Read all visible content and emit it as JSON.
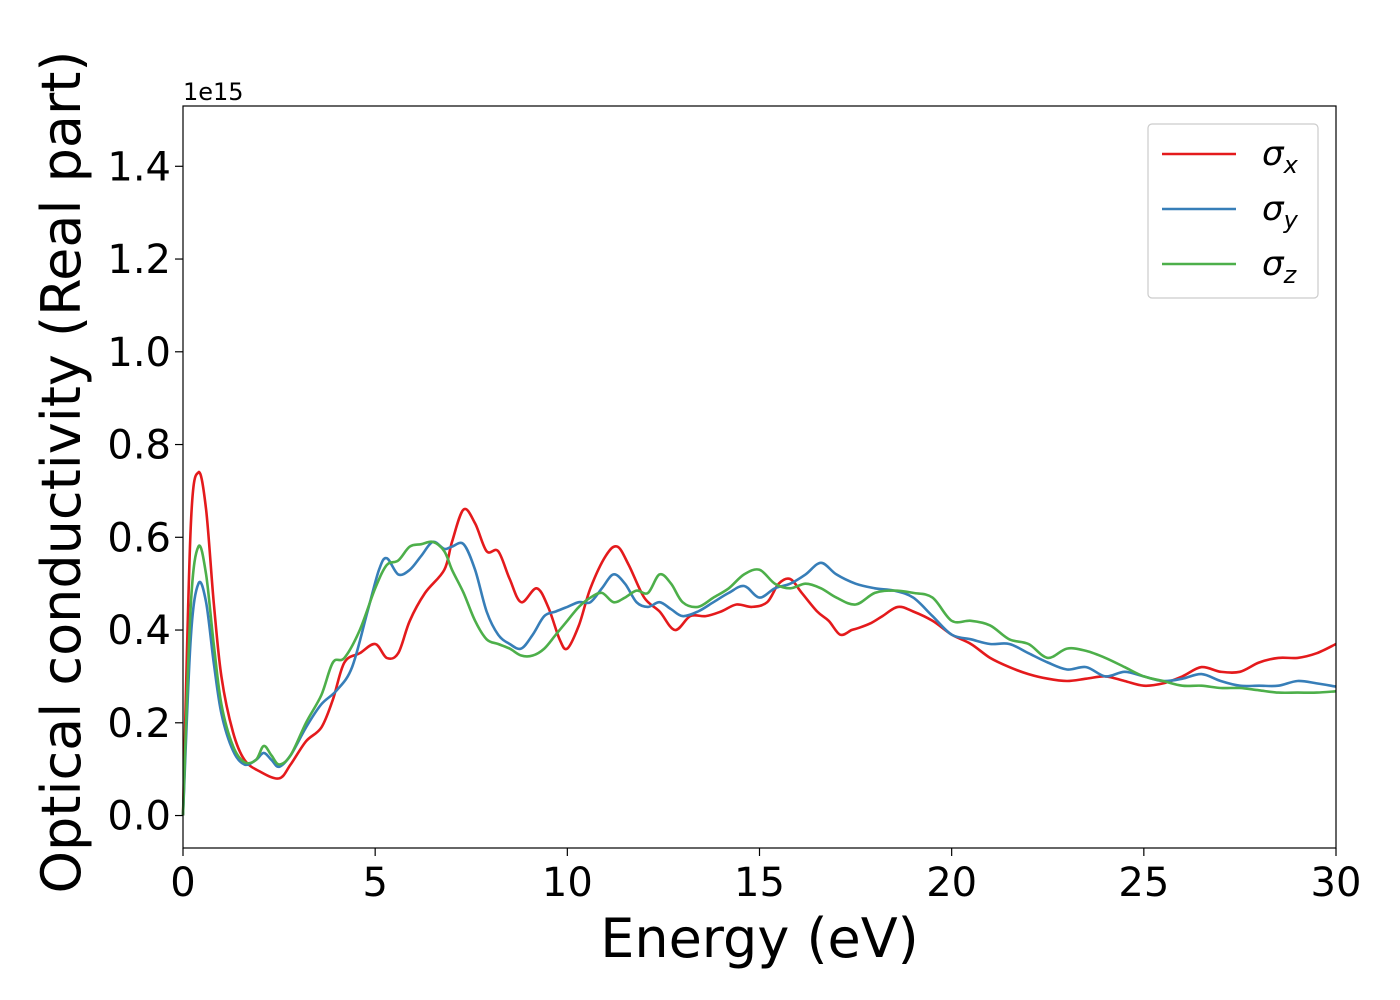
{
  "chart_data": {
    "type": "line",
    "xlabel": "Energy (eV)",
    "ylabel": "Optical conductivity (Real part)",
    "y_offset_label": "1e15",
    "y_scale_factor": 1000000000000000.0,
    "xlim": [
      0,
      30
    ],
    "ylim": [
      -0.07,
      1.53
    ],
    "x_ticks": [
      0,
      5,
      10,
      15,
      20,
      25,
      30
    ],
    "x_tick_labels": [
      "0",
      "5",
      "10",
      "15",
      "20",
      "25",
      "30"
    ],
    "y_ticks": [
      0.0,
      0.2,
      0.4,
      0.6,
      0.8,
      1.0,
      1.2,
      1.4
    ],
    "y_tick_labels": [
      "0.0",
      "0.2",
      "0.4",
      "0.6",
      "0.8",
      "1.0",
      "1.2",
      "1.4"
    ],
    "grid": false,
    "legend_position": "top-right",
    "series": [
      {
        "name": "σx",
        "legend_main": "σ",
        "legend_sub": "x",
        "color": "#e41a1c",
        "x": [
          0,
          0.2,
          0.4,
          0.6,
          0.8,
          1.0,
          1.3,
          1.6,
          2.0,
          2.5,
          2.8,
          3.2,
          3.6,
          3.9,
          4.2,
          4.6,
          5.0,
          5.3,
          5.6,
          5.9,
          6.3,
          6.8,
          7.0,
          7.3,
          7.6,
          7.9,
          8.2,
          8.5,
          8.8,
          9.2,
          9.5,
          9.8,
          10.0,
          10.3,
          10.6,
          11.0,
          11.3,
          11.6,
          12.0,
          12.4,
          12.8,
          13.2,
          13.6,
          14.0,
          14.4,
          14.8,
          15.2,
          15.5,
          15.8,
          16.1,
          16.5,
          16.8,
          17.1,
          17.4,
          17.6,
          17.9,
          18.2,
          18.6,
          19.0,
          19.5,
          20.0,
          20.5,
          21.0,
          21.5,
          22.0,
          22.5,
          23.0,
          23.5,
          24.0,
          24.5,
          25.0,
          25.5,
          26.0,
          26.5,
          27.0,
          27.5,
          28.0,
          28.5,
          29.0,
          29.5,
          30.0
        ],
        "y": [
          0.0,
          0.62,
          0.74,
          0.66,
          0.46,
          0.3,
          0.18,
          0.12,
          0.095,
          0.08,
          0.11,
          0.16,
          0.19,
          0.25,
          0.33,
          0.35,
          0.37,
          0.34,
          0.35,
          0.42,
          0.48,
          0.53,
          0.59,
          0.66,
          0.63,
          0.57,
          0.57,
          0.51,
          0.46,
          0.49,
          0.45,
          0.38,
          0.36,
          0.41,
          0.49,
          0.56,
          0.58,
          0.54,
          0.47,
          0.44,
          0.4,
          0.43,
          0.43,
          0.44,
          0.455,
          0.45,
          0.46,
          0.5,
          0.51,
          0.48,
          0.44,
          0.42,
          0.39,
          0.4,
          0.405,
          0.415,
          0.43,
          0.45,
          0.44,
          0.42,
          0.39,
          0.37,
          0.34,
          0.32,
          0.305,
          0.295,
          0.29,
          0.295,
          0.3,
          0.29,
          0.28,
          0.285,
          0.3,
          0.32,
          0.31,
          0.31,
          0.33,
          0.34,
          0.34,
          0.35,
          0.37
        ]
      },
      {
        "name": "σy",
        "legend_main": "σ",
        "legend_sub": "y",
        "color": "#377eb8",
        "x": [
          0,
          0.2,
          0.4,
          0.6,
          0.8,
          1.0,
          1.3,
          1.6,
          1.9,
          2.1,
          2.3,
          2.5,
          2.8,
          3.2,
          3.6,
          4.0,
          4.4,
          4.8,
          5.1,
          5.3,
          5.6,
          5.9,
          6.2,
          6.5,
          6.8,
          7.0,
          7.3,
          7.6,
          7.9,
          8.2,
          8.5,
          8.8,
          9.1,
          9.4,
          9.7,
          10.0,
          10.3,
          10.6,
          10.9,
          11.2,
          11.5,
          11.8,
          12.1,
          12.4,
          12.7,
          13.0,
          13.4,
          13.8,
          14.2,
          14.6,
          15.0,
          15.4,
          15.8,
          16.2,
          16.6,
          17.0,
          17.5,
          18.0,
          18.5,
          19.0,
          19.5,
          20.0,
          20.5,
          21.0,
          21.5,
          22.0,
          22.5,
          23.0,
          23.5,
          24.0,
          24.5,
          25.0,
          25.5,
          26.0,
          26.5,
          27.0,
          27.5,
          28.0,
          28.5,
          29.0,
          29.5,
          30.0
        ],
        "y": [
          0.0,
          0.38,
          0.5,
          0.46,
          0.33,
          0.22,
          0.14,
          0.11,
          0.12,
          0.135,
          0.12,
          0.105,
          0.13,
          0.19,
          0.24,
          0.27,
          0.32,
          0.44,
          0.53,
          0.555,
          0.52,
          0.53,
          0.56,
          0.59,
          0.575,
          0.58,
          0.585,
          0.53,
          0.44,
          0.39,
          0.37,
          0.36,
          0.39,
          0.43,
          0.44,
          0.45,
          0.46,
          0.46,
          0.49,
          0.52,
          0.5,
          0.46,
          0.45,
          0.46,
          0.445,
          0.43,
          0.44,
          0.46,
          0.48,
          0.495,
          0.47,
          0.49,
          0.5,
          0.52,
          0.545,
          0.52,
          0.5,
          0.49,
          0.485,
          0.47,
          0.43,
          0.39,
          0.38,
          0.37,
          0.37,
          0.35,
          0.33,
          0.315,
          0.32,
          0.3,
          0.31,
          0.3,
          0.29,
          0.295,
          0.305,
          0.29,
          0.28,
          0.28,
          0.28,
          0.29,
          0.285,
          0.278
        ]
      },
      {
        "name": "σz",
        "legend_main": "σ",
        "legend_sub": "z",
        "color": "#4daf4a",
        "x": [
          0,
          0.2,
          0.4,
          0.6,
          0.8,
          1.0,
          1.3,
          1.6,
          1.9,
          2.1,
          2.3,
          2.5,
          2.8,
          3.2,
          3.6,
          3.9,
          4.2,
          4.6,
          5.0,
          5.3,
          5.6,
          5.9,
          6.2,
          6.5,
          6.8,
          7.0,
          7.3,
          7.6,
          7.9,
          8.2,
          8.5,
          8.8,
          9.1,
          9.4,
          9.7,
          10.0,
          10.3,
          10.6,
          10.9,
          11.2,
          11.5,
          11.8,
          12.1,
          12.4,
          12.7,
          13.0,
          13.4,
          13.8,
          14.2,
          14.6,
          15.0,
          15.4,
          15.8,
          16.2,
          16.6,
          17.0,
          17.5,
          18.0,
          18.5,
          19.0,
          19.5,
          20.0,
          20.5,
          21.0,
          21.5,
          22.0,
          22.5,
          23.0,
          23.5,
          24.0,
          24.5,
          25.0,
          25.5,
          26.0,
          26.5,
          27.0,
          27.5,
          28.0,
          28.5,
          29.0,
          29.5,
          30.0
        ],
        "y": [
          0.0,
          0.45,
          0.58,
          0.52,
          0.37,
          0.24,
          0.15,
          0.115,
          0.12,
          0.15,
          0.13,
          0.11,
          0.13,
          0.2,
          0.26,
          0.33,
          0.34,
          0.4,
          0.49,
          0.54,
          0.55,
          0.58,
          0.585,
          0.59,
          0.57,
          0.53,
          0.48,
          0.42,
          0.38,
          0.37,
          0.36,
          0.345,
          0.345,
          0.36,
          0.39,
          0.42,
          0.45,
          0.47,
          0.48,
          0.46,
          0.47,
          0.485,
          0.48,
          0.52,
          0.5,
          0.46,
          0.45,
          0.47,
          0.49,
          0.52,
          0.53,
          0.5,
          0.49,
          0.5,
          0.49,
          0.47,
          0.455,
          0.48,
          0.485,
          0.48,
          0.47,
          0.42,
          0.42,
          0.41,
          0.38,
          0.37,
          0.34,
          0.36,
          0.355,
          0.34,
          0.32,
          0.3,
          0.29,
          0.28,
          0.28,
          0.275,
          0.275,
          0.27,
          0.265,
          0.265,
          0.265,
          0.268
        ]
      }
    ]
  }
}
